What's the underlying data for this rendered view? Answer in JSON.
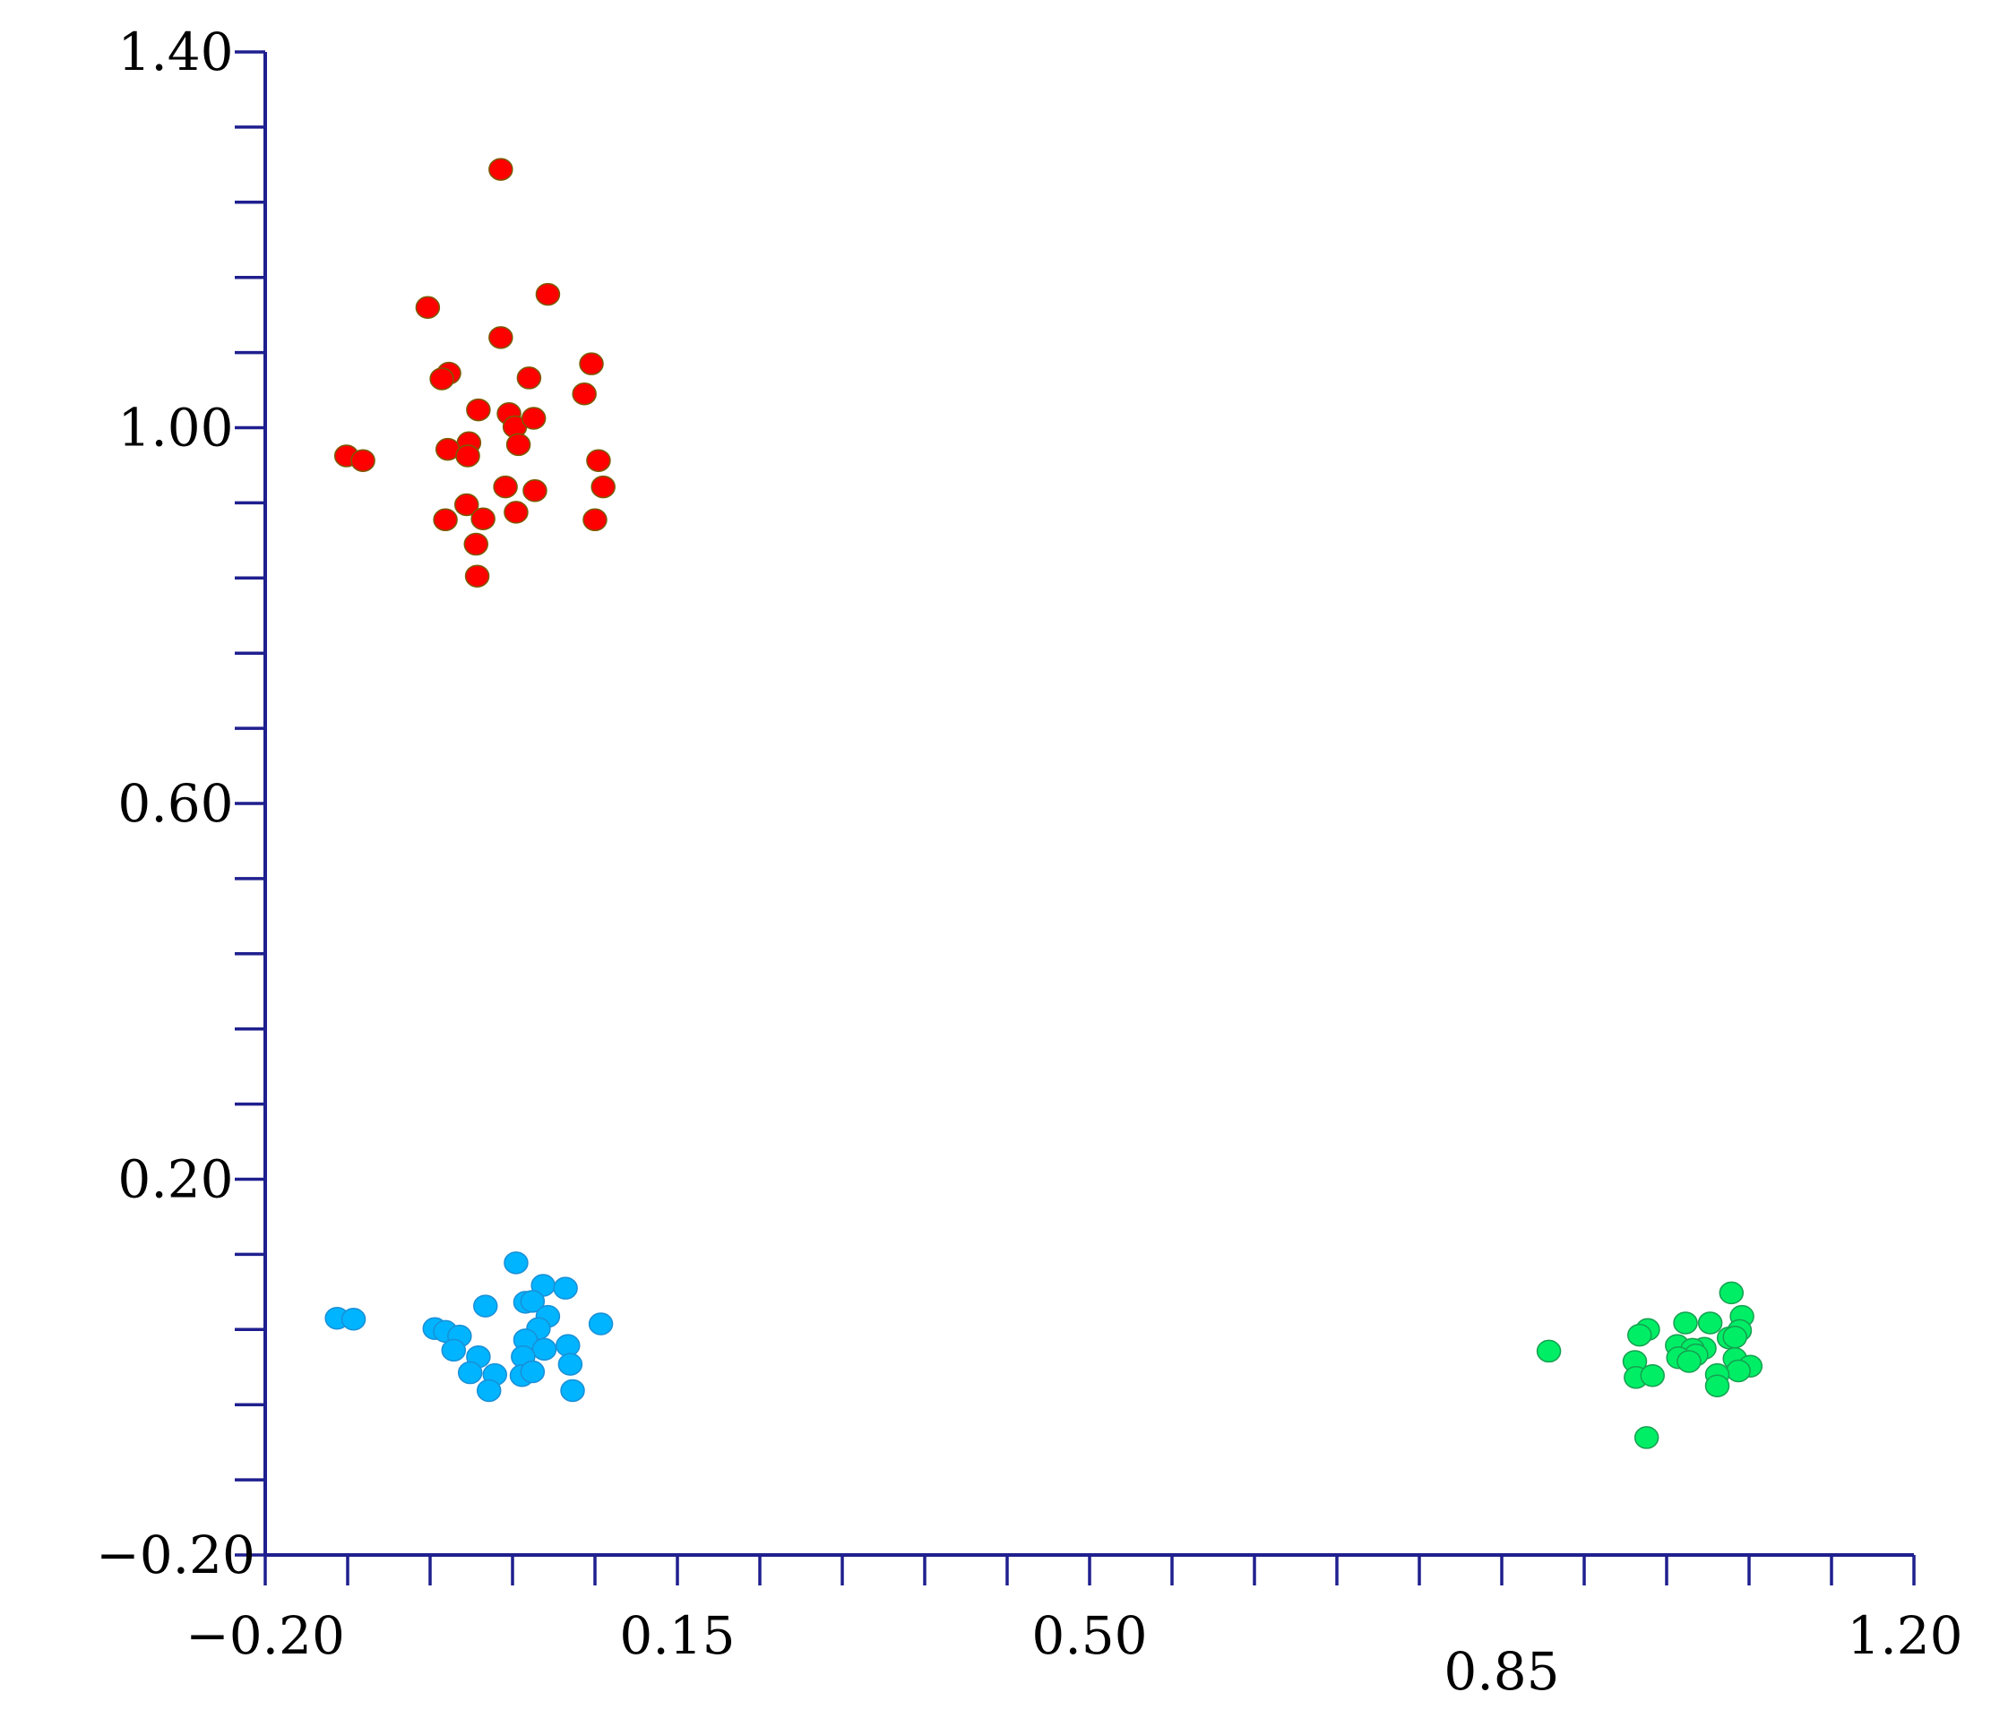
{
  "chart_data": {
    "type": "scatter",
    "title": "",
    "xlabel": "",
    "ylabel": "",
    "xlim": [
      -0.2,
      1.2
    ],
    "ylim": [
      -0.2,
      1.4
    ],
    "x_tick_labels": [
      {
        "value": -0.2,
        "label": "−0.20"
      },
      {
        "value": 0.15,
        "label": "0.15"
      },
      {
        "value": 0.5,
        "label": "0.50"
      },
      {
        "value": 0.85,
        "label": "0.85"
      },
      {
        "value": 1.2,
        "label": "1.20"
      }
    ],
    "y_tick_labels": [
      {
        "value": -0.2,
        "label": "−0.20"
      },
      {
        "value": 0.2,
        "label": "0.20"
      },
      {
        "value": 0.6,
        "label": "0.60"
      },
      {
        "value": 1.0,
        "label": "1.00"
      },
      {
        "value": 1.4,
        "label": "1.40"
      }
    ],
    "x_minor_step": 0.07,
    "y_minor_step": 0.08,
    "grid": false,
    "legend": "none",
    "axis_color": "#1f1f8f",
    "series": [
      {
        "color": "#ff0000",
        "edge_color": "#7a5a00",
        "points": [
          [
            0.0,
            1.275
          ],
          [
            -0.062,
            1.128
          ],
          [
            0.04,
            1.142
          ],
          [
            0.0,
            1.096
          ],
          [
            -0.044,
            1.058
          ],
          [
            -0.05,
            1.052
          ],
          [
            0.024,
            1.053
          ],
          [
            0.077,
            1.068
          ],
          [
            0.071,
            1.036
          ],
          [
            -0.019,
            1.019
          ],
          [
            0.007,
            1.015
          ],
          [
            0.012,
            1.001
          ],
          [
            0.028,
            1.01
          ],
          [
            0.015,
            0.982
          ],
          [
            -0.027,
            0.984
          ],
          [
            -0.045,
            0.977
          ],
          [
            -0.028,
            0.97
          ],
          [
            -0.131,
            0.97
          ],
          [
            -0.117,
            0.965
          ],
          [
            0.083,
            0.965
          ],
          [
            0.087,
            0.937
          ],
          [
            0.004,
            0.937
          ],
          [
            0.029,
            0.933
          ],
          [
            -0.029,
            0.918
          ],
          [
            0.013,
            0.91
          ],
          [
            -0.015,
            0.903
          ],
          [
            -0.047,
            0.902
          ],
          [
            0.08,
            0.902
          ],
          [
            -0.021,
            0.876
          ],
          [
            -0.02,
            0.842
          ]
        ]
      },
      {
        "color": "#00b4ff",
        "edge_color": "#1a8fd6",
        "points": [
          [
            0.013,
            0.111
          ],
          [
            0.036,
            0.087
          ],
          [
            0.055,
            0.084
          ],
          [
            0.021,
            0.069
          ],
          [
            0.027,
            0.07
          ],
          [
            -0.013,
            0.065
          ],
          [
            0.04,
            0.054
          ],
          [
            -0.139,
            0.052
          ],
          [
            -0.125,
            0.051
          ],
          [
            0.085,
            0.046
          ],
          [
            0.032,
            0.041
          ],
          [
            -0.056,
            0.041
          ],
          [
            -0.047,
            0.038
          ],
          [
            -0.035,
            0.033
          ],
          [
            0.021,
            0.029
          ],
          [
            0.057,
            0.023
          ],
          [
            0.037,
            0.019
          ],
          [
            -0.04,
            0.018
          ],
          [
            0.019,
            0.011
          ],
          [
            -0.019,
            0.011
          ],
          [
            0.059,
            0.003
          ],
          [
            0.018,
            -0.009
          ],
          [
            0.027,
            -0.005
          ],
          [
            -0.026,
            -0.006
          ],
          [
            -0.005,
            -0.008
          ],
          [
            -0.01,
            -0.025
          ],
          [
            0.061,
            -0.025
          ]
        ]
      },
      {
        "color": "#00ee66",
        "edge_color": "#16a050",
        "points": [
          [
            1.045,
            0.079
          ],
          [
            1.054,
            0.054
          ],
          [
            1.006,
            0.047
          ],
          [
            1.027,
            0.047
          ],
          [
            0.974,
            0.04
          ],
          [
            0.967,
            0.034
          ],
          [
            1.052,
            0.039
          ],
          [
            1.043,
            0.031
          ],
          [
            1.048,
            0.032
          ],
          [
            0.999,
            0.023
          ],
          [
            1.022,
            0.02
          ],
          [
            1.012,
            0.019
          ],
          [
            0.89,
            0.017
          ],
          [
            1.015,
            0.013
          ],
          [
            1.0,
            0.01
          ],
          [
            1.048,
            0.009
          ],
          [
            1.009,
            0.006
          ],
          [
            0.963,
            0.006
          ],
          [
            1.061,
            0.001
          ],
          [
            1.051,
            -0.004
          ],
          [
            1.033,
            -0.008
          ],
          [
            0.964,
            -0.011
          ],
          [
            0.978,
            -0.009
          ],
          [
            1.033,
            -0.02
          ],
          [
            0.973,
            -0.075
          ]
        ]
      }
    ]
  }
}
